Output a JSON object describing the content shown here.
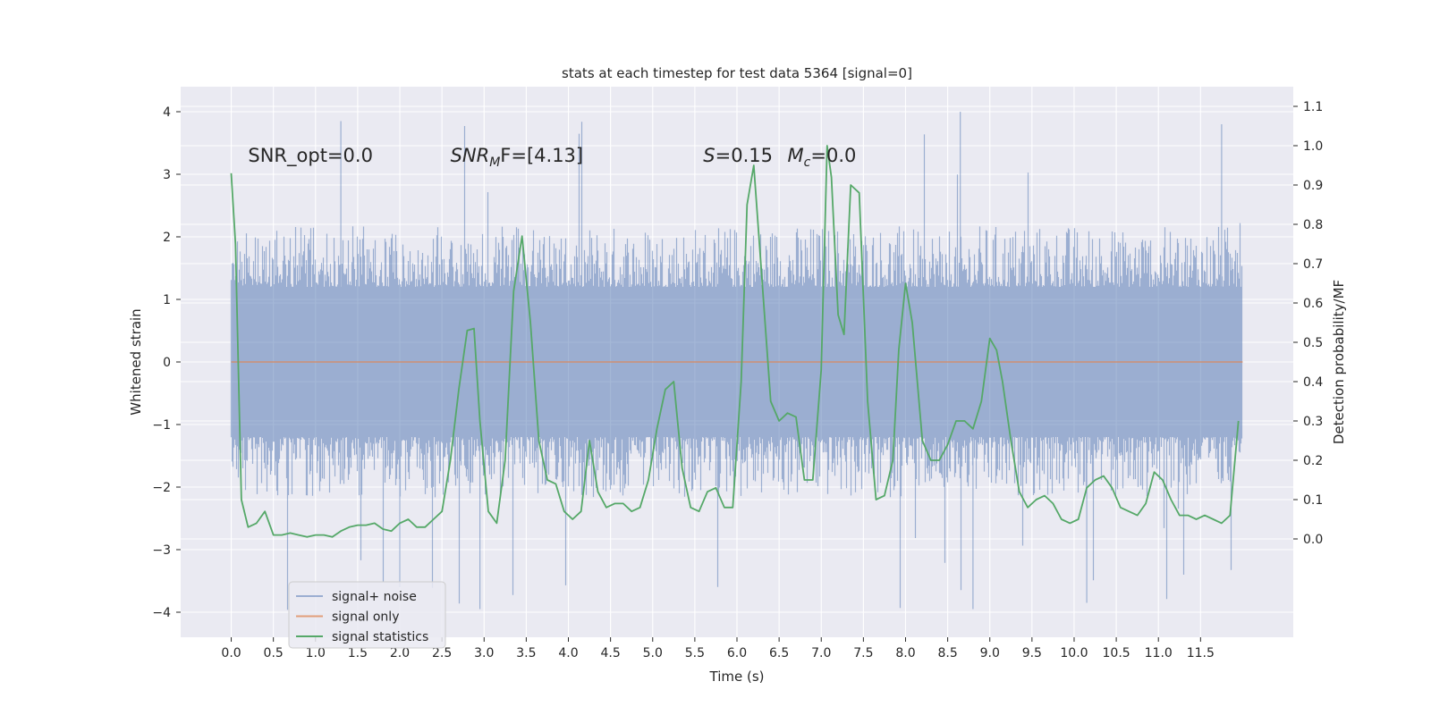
{
  "chart_data": {
    "type": "line",
    "title": "stats at each timestep for test data 5364 [signal=0]",
    "xlabel": "Time (s)",
    "ylabel": "Whitened strain",
    "y2label": "Detection probability/MF",
    "xlim": [
      -0.6,
      12.6
    ],
    "ylim": [
      -4.4,
      4.4
    ],
    "y2lim": [
      -0.25,
      1.15
    ],
    "x_ticks": [
      0.0,
      0.5,
      1.0,
      1.5,
      2.0,
      2.5,
      3.0,
      3.5,
      4.0,
      4.5,
      5.0,
      5.5,
      6.0,
      6.5,
      7.0,
      7.5,
      8.0,
      8.5,
      9.0,
      9.5,
      10.0,
      10.5,
      11.0,
      11.5
    ],
    "x_tick_labels": [
      "0.0",
      "0.5",
      "1.0",
      "1.5",
      "2.0",
      "2.5",
      "3.0",
      "3.5",
      "4.0",
      "4.5",
      "5.0",
      "5.5",
      "6.0",
      "6.5",
      "7.0",
      "7.5",
      "8.0",
      "8.5",
      "9.0",
      "9.5",
      "10.0",
      "10.5",
      "11.0",
      "11.5"
    ],
    "y_ticks": [
      -4,
      -3,
      -2,
      -1,
      0,
      1,
      2,
      3,
      4
    ],
    "y_tick_labels": [
      "−4",
      "−3",
      "−2",
      "−1",
      "0",
      "1",
      "2",
      "3",
      "4"
    ],
    "y2_ticks": [
      0.0,
      0.1,
      0.2,
      0.3,
      0.4,
      0.5,
      0.6,
      0.7,
      0.8,
      0.9,
      1.0,
      1.1
    ],
    "y2_tick_labels": [
      "0.0",
      "0.1",
      "0.2",
      "0.3",
      "0.4",
      "0.5",
      "0.6",
      "0.7",
      "0.8",
      "0.9",
      "1.0",
      "1.1"
    ],
    "grid": true,
    "legend_position": "lower-left",
    "annotations": [
      {
        "text": "SNR_opt=0.0",
        "x": 0.2,
        "y": 3.2
      },
      {
        "text": "SNR",
        "sub": "M",
        "tail": "F=[4.13]",
        "italic": true,
        "x": 2.6,
        "y": 3.2
      },
      {
        "text": "S",
        "tail": "=0.15",
        "italic": true,
        "x": 5.6,
        "y": 3.2
      },
      {
        "text": "M",
        "sub": "c",
        "tail": "=0.0",
        "italic": true,
        "x": 6.6,
        "y": 3.2
      }
    ],
    "series": [
      {
        "name": "signal+ noise",
        "color": "#4c72b0",
        "alpha": 0.5,
        "axis": "left",
        "x_range": [
          0.0,
          12.0
        ],
        "noise_band": {
          "core": 1.2,
          "common_extent": 2.2,
          "peak_extent": 4.0,
          "peaks": [
            [
              1.3,
              3.85
            ],
            [
              8.65,
              4.0
            ],
            [
              11.75,
              3.8
            ],
            [
              2.95,
              -3.95
            ],
            [
              8.8,
              -3.95
            ],
            [
              2.0,
              -3.6
            ],
            [
              10.15,
              -3.85
            ],
            [
              11.3,
              -3.4
            ]
          ]
        }
      },
      {
        "name": "signal only",
        "color": "#dd8452",
        "axis": "left",
        "x": [
          0.0,
          12.0
        ],
        "y": [
          0.0,
          0.0
        ]
      },
      {
        "name": "signal statistics",
        "color": "#55a868",
        "axis": "right",
        "x": [
          0.0,
          0.05,
          0.12,
          0.2,
          0.3,
          0.4,
          0.5,
          0.6,
          0.7,
          0.8,
          0.9,
          1.0,
          1.1,
          1.2,
          1.3,
          1.4,
          1.5,
          1.6,
          1.7,
          1.8,
          1.9,
          2.0,
          2.1,
          2.2,
          2.3,
          2.4,
          2.5,
          2.6,
          2.7,
          2.8,
          2.88,
          2.95,
          3.05,
          3.15,
          3.25,
          3.35,
          3.45,
          3.55,
          3.65,
          3.75,
          3.85,
          3.95,
          4.05,
          4.15,
          4.25,
          4.35,
          4.45,
          4.55,
          4.65,
          4.75,
          4.85,
          4.95,
          5.05,
          5.15,
          5.25,
          5.35,
          5.45,
          5.55,
          5.65,
          5.75,
          5.85,
          5.95,
          6.05,
          6.12,
          6.2,
          6.3,
          6.4,
          6.5,
          6.6,
          6.7,
          6.8,
          6.9,
          7.0,
          7.07,
          7.12,
          7.2,
          7.27,
          7.35,
          7.45,
          7.55,
          7.65,
          7.75,
          7.85,
          7.92,
          8.0,
          8.08,
          8.2,
          8.3,
          8.4,
          8.5,
          8.6,
          8.7,
          8.8,
          8.9,
          9.0,
          9.08,
          9.15,
          9.25,
          9.35,
          9.45,
          9.55,
          9.65,
          9.75,
          9.85,
          9.95,
          10.05,
          10.15,
          10.25,
          10.35,
          10.45,
          10.55,
          10.65,
          10.75,
          10.85,
          10.95,
          11.05,
          11.15,
          11.25,
          11.35,
          11.45,
          11.55,
          11.65,
          11.75,
          11.85,
          11.95
        ],
        "y": [
          0.93,
          0.75,
          0.1,
          0.03,
          0.04,
          0.07,
          0.01,
          0.01,
          0.015,
          0.01,
          0.005,
          0.01,
          0.01,
          0.005,
          0.02,
          0.03,
          0.035,
          0.035,
          0.04,
          0.025,
          0.02,
          0.04,
          0.05,
          0.03,
          0.03,
          0.05,
          0.07,
          0.2,
          0.38,
          0.53,
          0.535,
          0.3,
          0.07,
          0.04,
          0.2,
          0.63,
          0.77,
          0.55,
          0.25,
          0.15,
          0.14,
          0.07,
          0.05,
          0.07,
          0.25,
          0.12,
          0.08,
          0.09,
          0.09,
          0.07,
          0.08,
          0.15,
          0.28,
          0.38,
          0.4,
          0.18,
          0.08,
          0.07,
          0.12,
          0.13,
          0.08,
          0.08,
          0.4,
          0.85,
          0.95,
          0.65,
          0.35,
          0.3,
          0.32,
          0.31,
          0.15,
          0.15,
          0.43,
          1.0,
          0.92,
          0.57,
          0.52,
          0.9,
          0.88,
          0.35,
          0.1,
          0.11,
          0.2,
          0.48,
          0.65,
          0.55,
          0.25,
          0.2,
          0.2,
          0.24,
          0.3,
          0.3,
          0.28,
          0.35,
          0.51,
          0.48,
          0.4,
          0.25,
          0.12,
          0.08,
          0.1,
          0.11,
          0.09,
          0.05,
          0.04,
          0.05,
          0.13,
          0.15,
          0.16,
          0.13,
          0.08,
          0.07,
          0.06,
          0.09,
          0.17,
          0.15,
          0.1,
          0.06,
          0.06,
          0.05,
          0.06,
          0.05,
          0.04,
          0.06,
          0.3
        ]
      }
    ]
  }
}
